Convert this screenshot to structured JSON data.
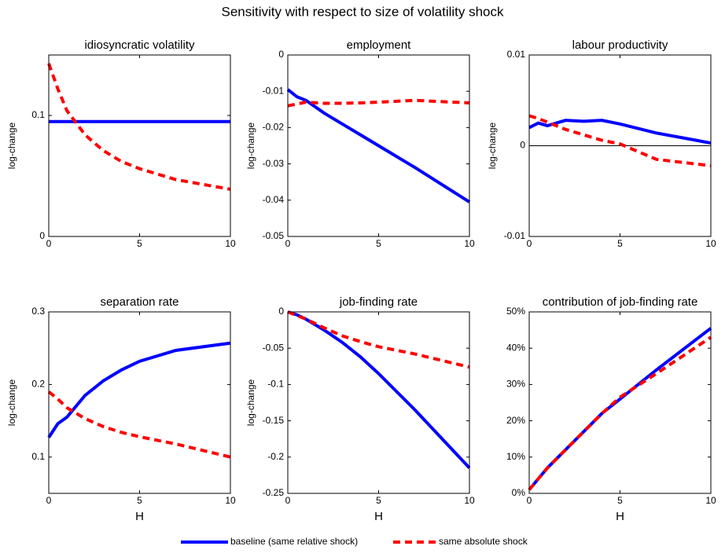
{
  "title": "Sensitivity with respect to size of volatility shock",
  "legend": [
    "baseline (same relative shock)",
    "same absolute shock"
  ],
  "chart_data": [
    {
      "type": "line",
      "title": "idiosyncratic volatility",
      "ylabel": "log-change",
      "x": [
        0,
        0.5,
        1,
        2,
        3,
        4,
        5,
        7,
        10
      ],
      "xlim": [
        0,
        10
      ],
      "xticks": [
        0,
        5,
        10
      ],
      "ylim": [
        0,
        0.15
      ],
      "yticks": [
        0,
        0.1
      ],
      "series": [
        {
          "color": "#0000ff",
          "style": "solid",
          "values": [
            0.095,
            0.095,
            0.095,
            0.095,
            0.095,
            0.095,
            0.095,
            0.095,
            0.095
          ]
        },
        {
          "color": "#ff0000",
          "style": "dashed",
          "values": [
            0.143,
            0.122,
            0.104,
            0.084,
            0.071,
            0.062,
            0.056,
            0.047,
            0.039
          ]
        }
      ]
    },
    {
      "type": "line",
      "title": "employment",
      "ylabel": "log-change",
      "x": [
        0,
        0.5,
        1,
        2,
        3,
        4,
        5,
        7,
        10
      ],
      "xlim": [
        0,
        10
      ],
      "xticks": [
        0,
        5,
        10
      ],
      "ylim": [
        -0.05,
        0
      ],
      "yticks": [
        -0.05,
        -0.04,
        -0.03,
        -0.02,
        -0.01,
        0
      ],
      "series": [
        {
          "color": "#0000ff",
          "style": "solid",
          "values": [
            -0.0095,
            -0.0115,
            -0.0125,
            -0.016,
            -0.019,
            -0.022,
            -0.025,
            -0.031,
            -0.0405
          ]
        },
        {
          "color": "#ff0000",
          "style": "dashed",
          "values": [
            -0.014,
            -0.0135,
            -0.013,
            -0.0133,
            -0.0133,
            -0.0132,
            -0.013,
            -0.0125,
            -0.0132
          ]
        }
      ]
    },
    {
      "type": "line",
      "title": "labour productivity",
      "ylabel": "log-change",
      "zero_line": true,
      "x": [
        0,
        0.5,
        1,
        2,
        3,
        4,
        5,
        7,
        10
      ],
      "xlim": [
        0,
        10
      ],
      "xticks": [
        0,
        5,
        10
      ],
      "ylim": [
        -0.01,
        0.01
      ],
      "yticks": [
        -0.01,
        0,
        0.01
      ],
      "series": [
        {
          "color": "#0000ff",
          "style": "solid",
          "values": [
            0.002,
            0.0025,
            0.0022,
            0.0028,
            0.0027,
            0.0028,
            0.0024,
            0.0014,
            0.0003
          ]
        },
        {
          "color": "#ff0000",
          "style": "dashed",
          "values": [
            0.0033,
            0.003,
            0.0026,
            0.0018,
            0.0012,
            0.0006,
            0.0002,
            -0.0015,
            -0.0022
          ]
        }
      ]
    },
    {
      "type": "line",
      "title": "separation rate",
      "ylabel": "log-change",
      "xlabel": "H",
      "x": [
        0,
        0.5,
        1,
        2,
        3,
        4,
        5,
        7,
        10
      ],
      "xlim": [
        0,
        10
      ],
      "xticks": [
        0,
        5,
        10
      ],
      "ylim": [
        0.05,
        0.3
      ],
      "yticks": [
        0.1,
        0.2,
        0.3
      ],
      "series": [
        {
          "color": "#0000ff",
          "style": "solid",
          "values": [
            0.127,
            0.146,
            0.155,
            0.185,
            0.205,
            0.22,
            0.232,
            0.247,
            0.257
          ]
        },
        {
          "color": "#ff0000",
          "style": "dashed",
          "values": [
            0.19,
            0.18,
            0.168,
            0.153,
            0.142,
            0.134,
            0.128,
            0.118,
            0.1
          ]
        }
      ]
    },
    {
      "type": "line",
      "title": "job-finding rate",
      "ylabel": "log-change",
      "xlabel": "H",
      "zero_line": true,
      "x": [
        0,
        0.5,
        1,
        2,
        3,
        4,
        5,
        7,
        10
      ],
      "xlim": [
        0,
        10
      ],
      "xticks": [
        0,
        5,
        10
      ],
      "ylim": [
        -0.25,
        0
      ],
      "yticks": [
        -0.25,
        -0.2,
        -0.15,
        -0.1,
        -0.05,
        0
      ],
      "series": [
        {
          "color": "#0000ff",
          "style": "solid",
          "values": [
            0,
            -0.004,
            -0.01,
            -0.025,
            -0.042,
            -0.062,
            -0.085,
            -0.135,
            -0.215
          ]
        },
        {
          "color": "#ff0000",
          "style": "dashed",
          "values": [
            0,
            -0.005,
            -0.01,
            -0.022,
            -0.033,
            -0.041,
            -0.048,
            -0.058,
            -0.076
          ]
        }
      ]
    },
    {
      "type": "line",
      "title": "contribution of job-finding rate",
      "xlabel": "H",
      "x": [
        0,
        0.5,
        1,
        2,
        3,
        4,
        5,
        7,
        10
      ],
      "xlim": [
        0,
        10
      ],
      "xticks": [
        0,
        5,
        10
      ],
      "ylim": [
        0,
        50
      ],
      "yticks": [
        {
          "value": 0,
          "label": "0%"
        },
        {
          "value": 10,
          "label": "10%"
        },
        {
          "value": 20,
          "label": "20%"
        },
        {
          "value": 30,
          "label": "30%"
        },
        {
          "value": 40,
          "label": "40%"
        },
        {
          "value": 50,
          "label": "50%"
        }
      ],
      "series": [
        {
          "color": "#0000ff",
          "style": "solid",
          "values": [
            1,
            4,
            7,
            12,
            17,
            22,
            26,
            34,
            45.5
          ]
        },
        {
          "color": "#ff0000",
          "style": "dashed",
          "values": [
            1,
            4,
            7,
            12,
            17,
            22,
            26.5,
            33,
            43
          ]
        }
      ]
    }
  ]
}
